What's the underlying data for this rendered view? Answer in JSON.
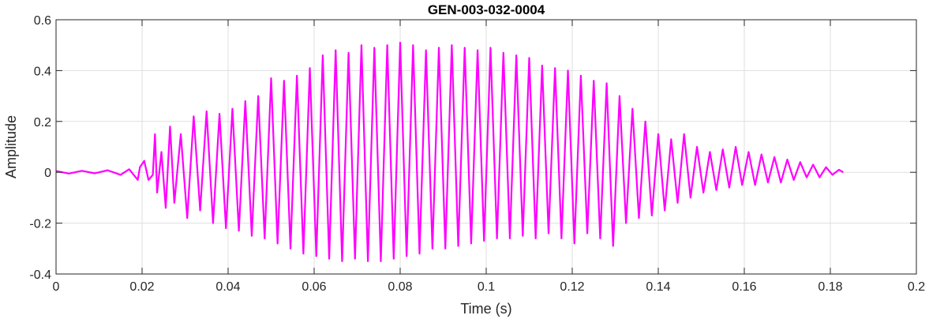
{
  "chart_data": {
    "type": "line",
    "title": "GEN-003-032-0004",
    "xlabel": "Time (s)",
    "ylabel": "Amplitude",
    "xlim": [
      0,
      0.2
    ],
    "ylim": [
      -0.4,
      0.6
    ],
    "xticks": [
      0,
      0.02,
      0.04,
      0.06,
      0.08,
      0.1,
      0.12,
      0.14,
      0.16,
      0.18,
      0.2
    ],
    "xtick_labels": [
      "0",
      "0.02",
      "0.04",
      "0.06",
      "0.08",
      "0.1",
      "0.12",
      "0.14",
      "0.16",
      "0.18",
      "0.2"
    ],
    "yticks": [
      -0.4,
      -0.2,
      0,
      0.2,
      0.4,
      0.6
    ],
    "ytick_labels": [
      "-0.4",
      "-0.2",
      "0",
      "0.2",
      "0.4",
      "0.6"
    ],
    "grid": true,
    "color": "#ff00ff",
    "series": [
      {
        "x": [
          0,
          0.003,
          0.006,
          0.009,
          0.012,
          0.015,
          0.017,
          0.019,
          0.0195,
          0.0205,
          0.0215,
          0.0225,
          0.023,
          0.0235,
          0.0245,
          0.0255,
          0.0265,
          0.0275,
          0.029,
          0.0305,
          0.032,
          0.0335,
          0.035,
          0.0365,
          0.038,
          0.0395,
          0.041,
          0.0425,
          0.044,
          0.0455,
          0.047,
          0.0485,
          0.05,
          0.0515,
          0.053,
          0.0545,
          0.056,
          0.0575,
          0.059,
          0.0605,
          0.062,
          0.0635,
          0.065,
          0.0665,
          0.068,
          0.0695,
          0.071,
          0.0725,
          0.074,
          0.0755,
          0.077,
          0.0785,
          0.08,
          0.0815,
          0.083,
          0.0845,
          0.086,
          0.0875,
          0.089,
          0.0905,
          0.092,
          0.0935,
          0.095,
          0.0965,
          0.098,
          0.0995,
          0.101,
          0.1025,
          0.104,
          0.1055,
          0.107,
          0.1085,
          0.11,
          0.1115,
          0.113,
          0.1145,
          0.116,
          0.1175,
          0.119,
          0.1205,
          0.122,
          0.1235,
          0.125,
          0.1265,
          0.128,
          0.1295,
          0.131,
          0.1325,
          0.134,
          0.1355,
          0.137,
          0.1385,
          0.14,
          0.1415,
          0.143,
          0.1445,
          0.146,
          0.1475,
          0.149,
          0.1505,
          0.152,
          0.1535,
          0.155,
          0.1565,
          0.158,
          0.1595,
          0.161,
          0.1625,
          0.164,
          0.1655,
          0.167,
          0.1685,
          0.17,
          0.1715,
          0.173,
          0.1745,
          0.176,
          0.1775,
          0.179,
          0.1805,
          0.182,
          0.183
        ],
        "y": [
          0.005,
          -0.005,
          0.006,
          -0.004,
          0.008,
          -0.01,
          0.012,
          -0.03,
          0.02,
          0.045,
          -0.03,
          -0.01,
          0.15,
          -0.08,
          0.08,
          -0.14,
          0.18,
          -0.12,
          0.15,
          -0.18,
          0.22,
          -0.15,
          0.24,
          -0.2,
          0.23,
          -0.22,
          0.25,
          -0.23,
          0.28,
          -0.25,
          0.3,
          -0.26,
          0.37,
          -0.28,
          0.36,
          -0.3,
          0.38,
          -0.32,
          0.41,
          -0.33,
          0.46,
          -0.34,
          0.48,
          -0.35,
          0.47,
          -0.34,
          0.5,
          -0.35,
          0.49,
          -0.35,
          0.5,
          -0.34,
          0.51,
          -0.33,
          0.5,
          -0.32,
          0.48,
          -0.3,
          0.49,
          -0.3,
          0.5,
          -0.29,
          0.49,
          -0.28,
          0.48,
          -0.27,
          0.49,
          -0.26,
          0.47,
          -0.26,
          0.46,
          -0.25,
          0.45,
          -0.26,
          0.42,
          -0.24,
          0.41,
          -0.26,
          0.4,
          -0.28,
          0.38,
          -0.24,
          0.36,
          -0.26,
          0.35,
          -0.29,
          0.3,
          -0.2,
          0.25,
          -0.18,
          0.2,
          -0.17,
          0.15,
          -0.15,
          0.13,
          -0.12,
          0.15,
          -0.1,
          0.1,
          -0.08,
          0.08,
          -0.07,
          0.09,
          -0.06,
          0.1,
          -0.05,
          0.08,
          -0.05,
          0.07,
          -0.04,
          0.06,
          -0.04,
          0.05,
          -0.03,
          0.04,
          -0.02,
          0.03,
          -0.02,
          0.02,
          -0.01,
          0.01,
          0.0
        ]
      }
    ]
  }
}
